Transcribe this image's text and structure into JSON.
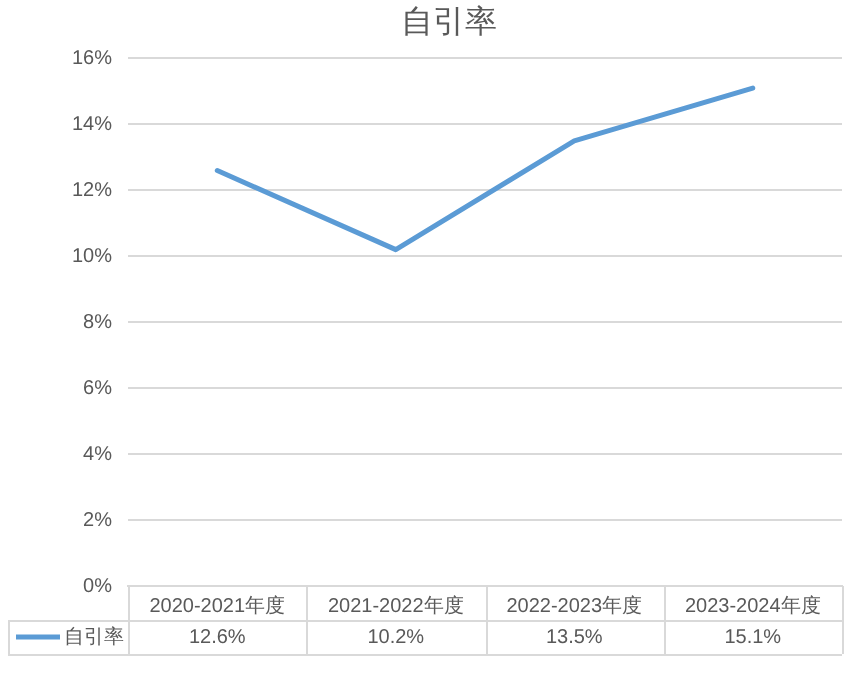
{
  "chart_data": {
    "type": "line",
    "title": "自引率",
    "categories": [
      "2020-2021年度",
      "2021-2022年度",
      "2022-2023年度",
      "2023-2024年度"
    ],
    "series": [
      {
        "name": "自引率",
        "color": "#5b9bd5",
        "values": [
          12.6,
          10.2,
          13.5,
          15.1
        ],
        "value_labels": [
          "12.6%",
          "10.2%",
          "13.5%",
          "15.1%"
        ]
      }
    ],
    "ylim": [
      0,
      16
    ],
    "yticks": [
      {
        "value": 0,
        "label": "0%"
      },
      {
        "value": 2,
        "label": "2%"
      },
      {
        "value": 4,
        "label": "4%"
      },
      {
        "value": 6,
        "label": "6%"
      },
      {
        "value": 8,
        "label": "8%"
      },
      {
        "value": 10,
        "label": "10%"
      },
      {
        "value": 12,
        "label": "12%"
      },
      {
        "value": 14,
        "label": "14%"
      },
      {
        "value": 16,
        "label": "16%"
      }
    ],
    "grid": "y",
    "legend": "bottom",
    "marker": "none",
    "line_style": "solid"
  }
}
